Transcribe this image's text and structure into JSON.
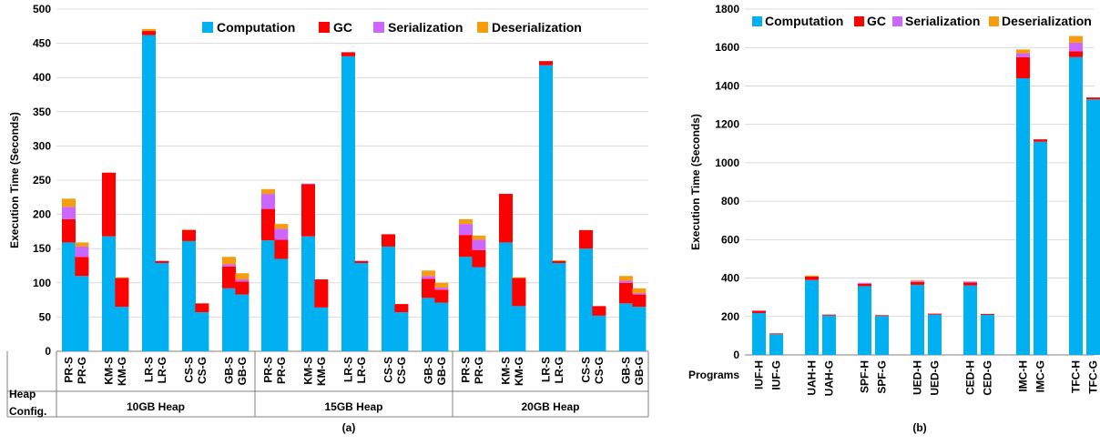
{
  "chart_data": [
    {
      "type": "bar",
      "stacked": true,
      "panel_label": "(a)",
      "ylabel": "Execution Time (Seconds)",
      "ylim": [
        0,
        500
      ],
      "yticks": [
        0,
        50,
        100,
        150,
        200,
        250,
        300,
        350,
        400,
        450,
        500
      ],
      "grid": true,
      "legend": "top",
      "row_label_top": "Heap",
      "row_label_bottom": "Config.",
      "groups": [
        {
          "name": "10GB Heap",
          "categories": [
            "PR-S",
            "PR-G",
            "KM-S",
            "KM-G",
            "LR-S",
            "LR-G",
            "CS-S",
            "CS-G",
            "GB-S",
            "GB-G"
          ]
        },
        {
          "name": "15GB Heap",
          "categories": [
            "PR-S",
            "PR-G",
            "KM-S",
            "KM-G",
            "LR-S",
            "LR-G",
            "CS-S",
            "CS-G",
            "GB-S",
            "GB-G"
          ]
        },
        {
          "name": "20GB Heap",
          "categories": [
            "PR-S",
            "PR-G",
            "KM-S",
            "KM-G",
            "LR-S",
            "LR-G",
            "CS-S",
            "CS-G",
            "GB-S",
            "GB-G"
          ]
        }
      ],
      "series": [
        {
          "name": "Computation",
          "color": "#00b0f0",
          "values": [
            159,
            110,
            168,
            65,
            462,
            129,
            161,
            57,
            92,
            83,
            162,
            135,
            168,
            64,
            431,
            129,
            153,
            57,
            78,
            71,
            138,
            123,
            159,
            66,
            418,
            129,
            150,
            52,
            70,
            65
          ]
        },
        {
          "name": "GC",
          "color": "#ff0000",
          "values": [
            34,
            28,
            93,
            42,
            6,
            3,
            16,
            13,
            32,
            19,
            46,
            28,
            76,
            41,
            6,
            3,
            18,
            12,
            28,
            19,
            32,
            25,
            71,
            41,
            6,
            3,
            27,
            14,
            30,
            18
          ]
        },
        {
          "name": "Serialization",
          "color": "#cc66ff",
          "values": [
            18,
            15,
            0,
            0,
            0,
            0,
            0,
            0,
            3,
            3,
            22,
            16,
            1,
            0,
            0,
            0,
            0,
            0,
            4,
            3,
            16,
            15,
            0,
            0,
            0,
            0,
            0,
            0,
            3,
            2
          ]
        },
        {
          "name": "Deserialization",
          "color": "#f59d0e",
          "values": [
            12,
            6,
            0,
            1,
            3,
            0,
            1,
            0,
            11,
            9,
            7,
            7,
            0,
            0,
            0,
            0,
            0,
            0,
            8,
            7,
            7,
            6,
            0,
            1,
            0,
            1,
            0,
            0,
            7,
            7
          ]
        }
      ]
    },
    {
      "type": "bar",
      "stacked": true,
      "panel_label": "(b)",
      "ylabel": "Execution Time (Seconds)",
      "ylim": [
        0,
        1800
      ],
      "yticks": [
        0,
        200,
        400,
        600,
        800,
        1000,
        1200,
        1400,
        1600,
        1800
      ],
      "grid": true,
      "legend": "top",
      "row_label": "Programs",
      "categories": [
        "IUF-H",
        "IUF-G",
        "UAH-H",
        "UAH-G",
        "SPF-H",
        "SPF-G",
        "UED-H",
        "UED-G",
        "CED-H",
        "CED-G",
        "IMC-H",
        "IMC-G",
        "TFC-H",
        "TFC-G"
      ],
      "series": [
        {
          "name": "Computation",
          "color": "#00b0f0",
          "values": [
            218,
            108,
            390,
            205,
            358,
            203,
            365,
            210,
            362,
            208,
            1440,
            1110,
            1550,
            1330
          ]
        },
        {
          "name": "GC",
          "color": "#ff0000",
          "values": [
            12,
            4,
            18,
            5,
            12,
            4,
            15,
            5,
            15,
            5,
            110,
            12,
            30,
            10
          ]
        },
        {
          "name": "Serialization",
          "color": "#cc66ff",
          "values": [
            0,
            0,
            0,
            0,
            5,
            0,
            5,
            0,
            5,
            0,
            20,
            0,
            45,
            0
          ]
        },
        {
          "name": "Deserialization",
          "color": "#f59d0e",
          "values": [
            0,
            0,
            5,
            0,
            0,
            0,
            5,
            0,
            0,
            0,
            20,
            0,
            35,
            0
          ]
        }
      ]
    }
  ]
}
